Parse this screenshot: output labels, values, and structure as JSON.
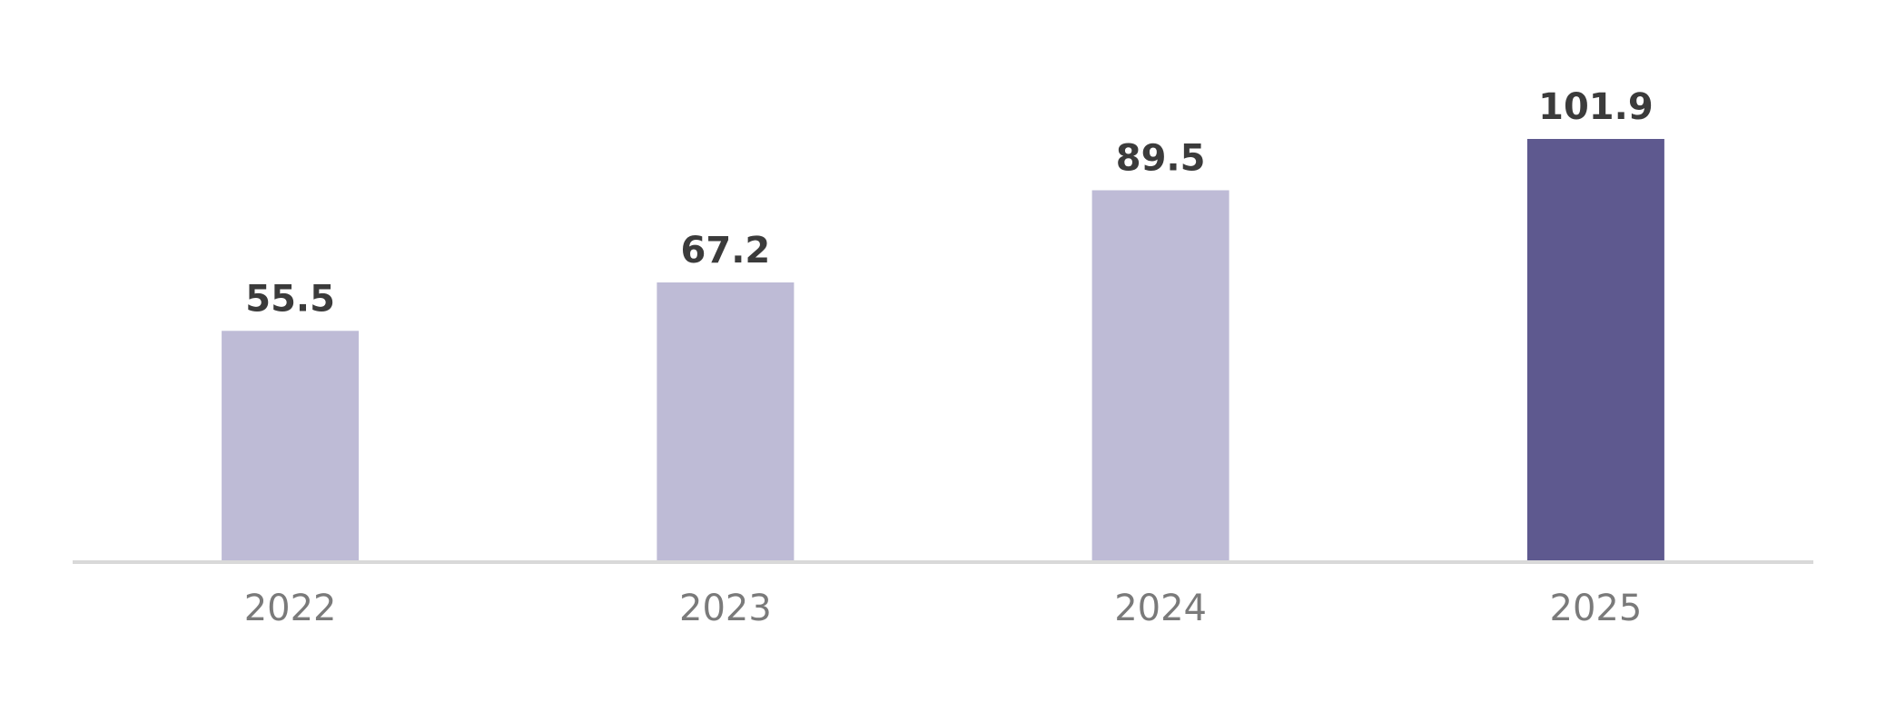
{
  "chart_data": {
    "type": "bar",
    "title": "",
    "xlabel": "",
    "ylabel": "",
    "categories": [
      "2022",
      "2023",
      "2024",
      "2025"
    ],
    "values": [
      55.5,
      67.2,
      89.5,
      101.9
    ],
    "data_labels": [
      "55.5",
      "67.2",
      "89.5",
      "101.9"
    ],
    "ylim": [
      0,
      101.9
    ],
    "grid": false,
    "legend": "none",
    "colors": {
      "bar": "#bebbd6",
      "highlight_bar": "#5e598f",
      "baseline": "#d9d9d9",
      "value_label": "#3b3b3b",
      "tick_label": "#7a7a7a"
    },
    "highlight_index": 3
  }
}
